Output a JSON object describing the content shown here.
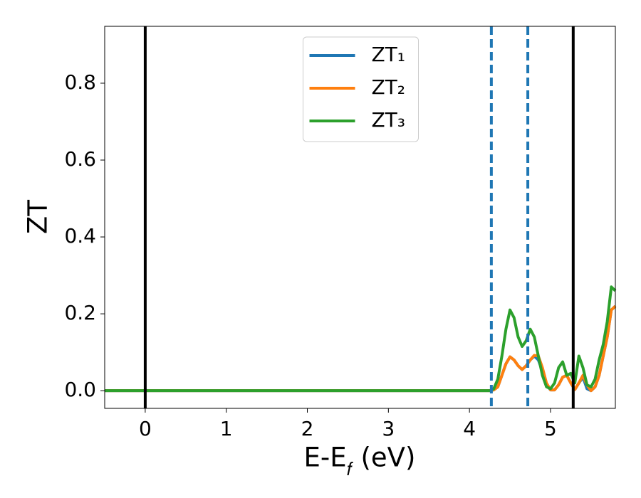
{
  "chart_data": {
    "type": "line",
    "xlabel": "E-E𝑓 (eV)",
    "ylabel": "ZT",
    "x": [
      -0.5,
      4.25,
      4.3,
      4.35,
      4.4,
      4.45,
      4.5,
      4.55,
      4.6,
      4.65,
      4.7,
      4.75,
      4.8,
      4.85,
      4.9,
      4.95,
      5.0,
      5.05,
      5.1,
      5.15,
      5.2,
      5.25,
      5.3,
      5.35,
      5.4,
      5.45,
      5.5,
      5.55,
      5.6,
      5.65,
      5.7,
      5.75,
      5.8
    ],
    "series": [
      {
        "name": "ZT₁",
        "color": "#1f77b4",
        "values": [
          0,
          0,
          0.002,
          0.01,
          0.04,
          0.07,
          0.088,
          0.08,
          0.065,
          0.055,
          0.065,
          0.08,
          0.09,
          0.08,
          0.05,
          0.015,
          0.002,
          0.002,
          0.015,
          0.035,
          0.04,
          0.02,
          0.003,
          0.02,
          0.035,
          0.005,
          0.0,
          0.01,
          0.04,
          0.09,
          0.14,
          0.21,
          0.22
        ]
      },
      {
        "name": "ZT₂",
        "color": "#ff7f0e",
        "values": [
          0,
          0,
          0.002,
          0.01,
          0.04,
          0.07,
          0.088,
          0.08,
          0.065,
          0.055,
          0.065,
          0.08,
          0.092,
          0.09,
          0.06,
          0.02,
          0.002,
          0.002,
          0.015,
          0.035,
          0.04,
          0.02,
          0.003,
          0.02,
          0.04,
          0.015,
          0.0,
          0.01,
          0.04,
          0.09,
          0.14,
          0.21,
          0.22
        ]
      },
      {
        "name": "ZT₃",
        "color": "#2ca02c",
        "values": [
          0,
          0,
          0.005,
          0.03,
          0.09,
          0.16,
          0.21,
          0.19,
          0.14,
          0.115,
          0.13,
          0.16,
          0.14,
          0.09,
          0.04,
          0.01,
          0.005,
          0.02,
          0.06,
          0.075,
          0.04,
          0.045,
          0.02,
          0.09,
          0.06,
          0.015,
          0.01,
          0.03,
          0.08,
          0.12,
          0.18,
          0.27,
          0.26
        ]
      }
    ],
    "vlines": [
      {
        "x": 0,
        "color": "#000000",
        "style": "solid"
      },
      {
        "x": 5.28,
        "color": "#000000",
        "style": "solid"
      },
      {
        "x": 4.27,
        "color": "#1f77b4",
        "style": "dashed"
      },
      {
        "x": 4.72,
        "color": "#1f77b4",
        "style": "dashed"
      }
    ],
    "xlim": [
      -0.5,
      5.8
    ],
    "ylim": [
      -0.046,
      0.948
    ],
    "xticks": [
      0,
      1,
      2,
      3,
      4,
      5
    ],
    "yticks": [
      {
        "value": 0,
        "label": "0.0"
      },
      0.2,
      0.4,
      0.6,
      0.8
    ],
    "legend": "upper center"
  }
}
